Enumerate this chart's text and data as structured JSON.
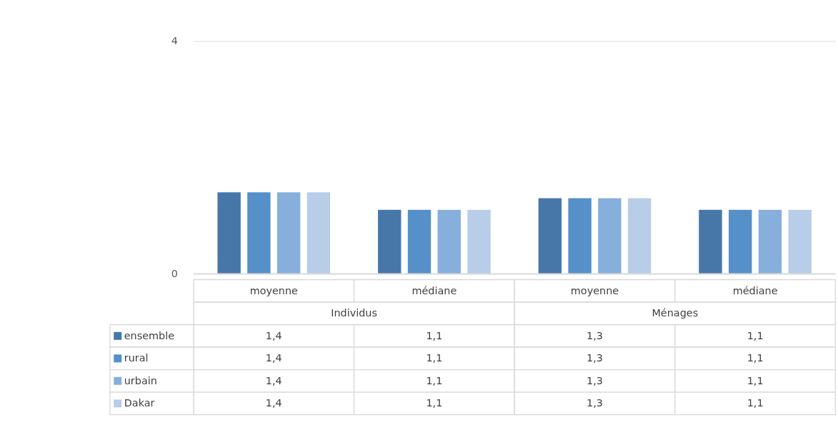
{
  "chart_data": {
    "type": "bar",
    "categories": [
      "moyenne",
      "médiane",
      "moyenne",
      "médiane"
    ],
    "annotations": [
      "Individus",
      "Ménages"
    ],
    "series": [
      {
        "name": "ensemble",
        "color": "#4677a8",
        "values": [
          1.4,
          1.1,
          1.3,
          1.1
        ],
        "value_labels": [
          "1,4",
          "1,1",
          "1,3",
          "1,1"
        ]
      },
      {
        "name": "rural",
        "color": "#5590c8",
        "values": [
          1.4,
          1.1,
          1.3,
          1.1
        ],
        "value_labels": [
          "1,4",
          "1,1",
          "1,3",
          "1,1"
        ]
      },
      {
        "name": "urbain",
        "color": "#86afdb",
        "values": [
          1.4,
          1.1,
          1.3,
          1.1
        ],
        "value_labels": [
          "1,4",
          "1,1",
          "1,3",
          "1,1"
        ]
      },
      {
        "name": "Dakar",
        "color": "#b8cde8",
        "values": [
          1.4,
          1.1,
          1.3,
          1.1
        ],
        "value_labels": [
          "1,4",
          "1,1",
          "1,3",
          "1,1"
        ]
      }
    ],
    "ylim": [
      0,
      4
    ],
    "yticks": [
      0,
      4
    ],
    "grid": "y",
    "legend": "bottom left"
  }
}
